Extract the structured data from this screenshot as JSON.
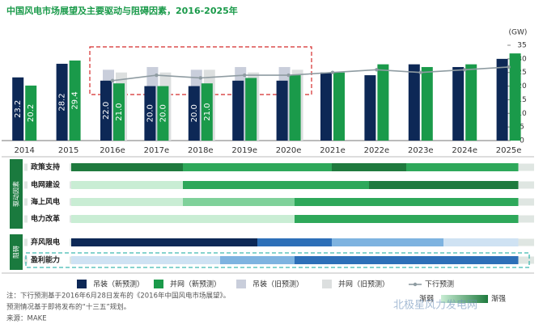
{
  "chart_data": {
    "type": "bar",
    "title": "中国风电市场展望及主要驱动与阻碍因素，2016-2025年",
    "y_label": "(GW)",
    "categories": [
      "2014",
      "2015",
      "2016e",
      "2017e",
      "2018e",
      "2019e",
      "2020e",
      "2021e",
      "2022e",
      "2023e",
      "2024e",
      "2025e"
    ],
    "ylim": [
      0,
      35
    ],
    "yticks": [
      0,
      5,
      10,
      15,
      20,
      25,
      30,
      35
    ],
    "series": [
      {
        "name": "吊装（新预测）",
        "color": "#0d2856",
        "values": [
          23.2,
          28.2,
          22,
          20,
          20,
          22,
          22,
          25,
          24,
          28,
          27,
          30
        ],
        "value_labels": [
          "23.2",
          "28.2",
          "22.0",
          "20.0",
          "20.0",
          null,
          null,
          null,
          null,
          null,
          null,
          null
        ]
      },
      {
        "name": "并网（新预测）",
        "color": "#1a9a4a",
        "values": [
          20.2,
          29.4,
          21,
          20,
          21,
          23,
          24,
          25,
          28,
          27,
          28,
          32
        ],
        "value_labels": [
          "20.2",
          "29.4",
          "21.0",
          "20.0",
          "21.0",
          null,
          null,
          null,
          null,
          null,
          null,
          null
        ]
      },
      {
        "name": "吊装（旧预测）",
        "color": "#c9cedb",
        "values": [
          null,
          null,
          26,
          27,
          26,
          27,
          27,
          null,
          null,
          null,
          null,
          null
        ]
      },
      {
        "name": "并网（旧预测）",
        "color": "#dcdfdf",
        "values": [
          null,
          null,
          25,
          25,
          26,
          25,
          26,
          null,
          null,
          null,
          null,
          null
        ]
      },
      {
        "name": "下行预测",
        "color": "#8f9ca2",
        "type": "line",
        "values": [
          null,
          null,
          22,
          24,
          23,
          24,
          24,
          25,
          26,
          25,
          26,
          27
        ]
      }
    ]
  },
  "factors": {
    "drivers_label": "驱动因素",
    "barriers_label": "阻碍",
    "rows": [
      {
        "name": "政策支持",
        "group": "drivers",
        "colors": [
          "#1f7a3e",
          "#1f7a3e",
          "#1f7a3e",
          "#2ea85a",
          "#2ea85a",
          "#2ea85a",
          "#2ea85a",
          "#1f7a3e",
          "#1f7a3e",
          "#2ea85a",
          "#2ea85a",
          "#2ea85a"
        ]
      },
      {
        "name": "电网建设",
        "group": "drivers",
        "colors": [
          "#c9edd4",
          "#c9edd4",
          "#c9edd4",
          "#2ea85a",
          "#2ea85a",
          "#2ea85a",
          "#2ea85a",
          "#2ea85a",
          "#1f7a3e",
          "#1f7a3e",
          "#1f7a3e",
          "#1f7a3e"
        ]
      },
      {
        "name": "海上风电",
        "group": "drivers",
        "colors": [
          "#c9edd4",
          "#c9edd4",
          "#c9edd4",
          "#7fd19a",
          "#7fd19a",
          "#7fd19a",
          "#2ea85a",
          "#2ea85a",
          "#2ea85a",
          "#2ea85a",
          "#2ea85a",
          "#2ea85a"
        ]
      },
      {
        "name": "电力改革",
        "group": "drivers",
        "colors": [
          "#c9edd4",
          "#c9edd4",
          "#c9edd4",
          "#c9edd4",
          "#c9edd4",
          "#c9edd4",
          "#2ea85a",
          "#2ea85a",
          "#2ea85a",
          "#2ea85a",
          "#2ea85a",
          "#2ea85a"
        ]
      },
      {
        "name": "弃风限电",
        "group": "barriers",
        "colors": [
          "#0d2856",
          "#0d2856",
          "#0d2856",
          "#0d2856",
          "#0d2856",
          "#2d6fb8",
          "#2d6fb8",
          "#7eb3e0",
          "#7eb3e0",
          "#7eb3e0",
          "#cfe2f3",
          "#cfe2f3"
        ]
      },
      {
        "name": "盈利能力",
        "group": "barriers",
        "colors": [
          "#cfe2f3",
          "#cfe2f3",
          "#cfe2f3",
          "#cfe2f3",
          "#7eb3e0",
          "#7eb3e0",
          "#2d6fb8",
          "#2d6fb8",
          "#2d6fb8",
          "#2d6fb8",
          "#2d6fb8",
          "#2d6fb8"
        ]
      }
    ]
  },
  "scale": {
    "weak": "渐弱",
    "strong": "渐强"
  },
  "notes": [
    "注：下行预测基于2016年6月28日发布的《2016年中国风电市场展望》。",
    "预测情况基于即将发布的“十三五”规划。"
  ],
  "source": "来源：MAKE",
  "watermark": "北极星风力发电网"
}
